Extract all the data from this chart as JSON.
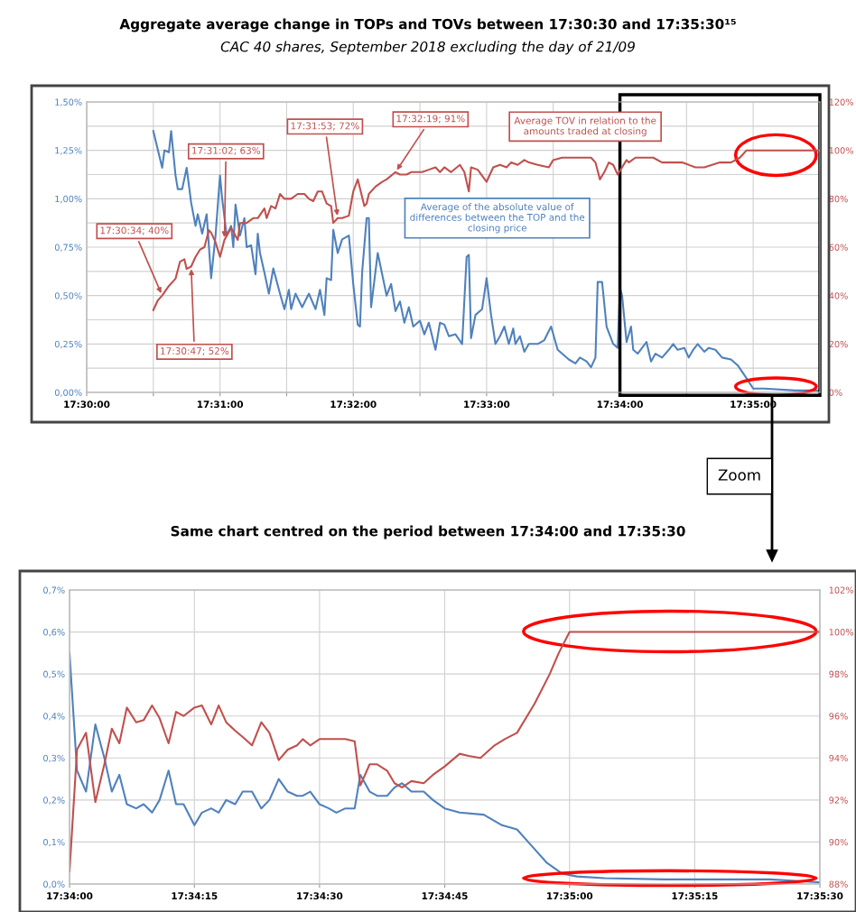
{
  "chart_data": [
    {
      "type": "line",
      "title": "Aggregate average change in TOPs and TOVs between 17:30:30 and 17:35:30¹⁵",
      "subtitle": "CAC 40 shares, September 2018 excluding the day of 21/09",
      "xlim": [
        17.5,
        17.59167
      ],
      "xticks": [
        {
          "value": 17.5,
          "label": "17:30:00"
        },
        {
          "value": 17.50833,
          "label": null
        },
        {
          "value": 17.51667,
          "label": "17:31:00"
        },
        {
          "value": 17.525,
          "label": null
        },
        {
          "value": 17.53333,
          "label": "17:32:00"
        },
        {
          "value": 17.54167,
          "label": null
        },
        {
          "value": 17.55,
          "label": "17:33:00"
        },
        {
          "value": 17.55833,
          "label": null
        },
        {
          "value": 17.56667,
          "label": "17:34:00"
        },
        {
          "value": 17.575,
          "label": null
        },
        {
          "value": 17.58333,
          "label": "17:35:00"
        }
      ],
      "ylim": [
        0,
        1.5
      ],
      "yticks": [
        {
          "value": 0,
          "label": "0,00%"
        },
        {
          "value": 0.125,
          "label": null
        },
        {
          "value": 0.25,
          "label": "0,25%"
        },
        {
          "value": 0.375,
          "label": null
        },
        {
          "value": 0.5,
          "label": "0,50%"
        },
        {
          "value": 0.625,
          "label": null
        },
        {
          "value": 0.75,
          "label": "0,75%"
        },
        {
          "value": 0.875,
          "label": null
        },
        {
          "value": 1.0,
          "label": "1,00%"
        },
        {
          "value": 1.125,
          "label": null
        },
        {
          "value": 1.25,
          "label": "1,25%"
        },
        {
          "value": 1.375,
          "label": null
        },
        {
          "value": 1.5,
          "label": "1,50%"
        }
      ],
      "y2lim": [
        0,
        120
      ],
      "y2ticks": [
        {
          "value": 0,
          "label": "0%"
        },
        {
          "value": 20,
          "label": "20%"
        },
        {
          "value": 40,
          "label": "40%"
        },
        {
          "value": 60,
          "label": "60%"
        },
        {
          "value": 80,
          "label": "80%"
        },
        {
          "value": 100,
          "label": "100%"
        },
        {
          "value": 120,
          "label": "120%"
        }
      ],
      "grid": true,
      "series": [
        {
          "name": "Average of the absolute value of\ndifferences between the TOP and the\nclosing price",
          "color": "#4f81bd",
          "x": [
            17.50833,
            17.50944,
            17.50972,
            17.51028,
            17.51056,
            17.51111,
            17.51139,
            17.51194,
            17.5125,
            17.51306,
            17.51361,
            17.51389,
            17.51444,
            17.515,
            17.51556,
            17.51611,
            17.51667,
            17.51694,
            17.5175,
            17.51806,
            17.51833,
            17.51861,
            17.51917,
            17.51972,
            17.52,
            17.52056,
            17.52111,
            17.52139,
            17.52167,
            17.52222,
            17.52278,
            17.52333,
            17.52417,
            17.52472,
            17.52528,
            17.52556,
            17.52611,
            17.52694,
            17.52778,
            17.52861,
            17.52917,
            17.52972,
            17.53,
            17.53056,
            17.53083,
            17.53139,
            17.53194,
            17.53278,
            17.53333,
            17.53389,
            17.53417,
            17.53444,
            17.535,
            17.53528,
            17.53556,
            17.53639,
            17.5375,
            17.53806,
            17.53861,
            17.53917,
            17.53972,
            17.54028,
            17.54083,
            17.54167,
            17.54222,
            17.54278,
            17.54361,
            17.54417,
            17.54472,
            17.54528,
            17.54611,
            17.54694,
            17.5475,
            17.54778,
            17.54806,
            17.54861,
            17.54944,
            17.55,
            17.55056,
            17.55111,
            17.55167,
            17.55222,
            17.55278,
            17.55333,
            17.55361,
            17.55417,
            17.55472,
            17.55528,
            17.55639,
            17.55722,
            17.55806,
            17.55889,
            17.55944,
            17.56028,
            17.56111,
            17.56167,
            17.5625,
            17.56306,
            17.56361,
            17.56389,
            17.56444,
            17.565,
            17.56583,
            17.56639,
            17.56667,
            17.56694,
            17.5675,
            17.56806,
            17.56833,
            17.56889,
            17.56944,
            17.57,
            17.57056,
            17.57111,
            17.57194,
            17.57278,
            17.57333,
            17.57389,
            17.57472,
            17.57528,
            17.57583,
            17.57639,
            17.57722,
            17.57778,
            17.57861,
            17.57944,
            17.58056,
            17.58139,
            17.58222,
            17.58333,
            17.58472,
            17.58861,
            17.59167
          ],
          "values": [
            1.35,
            1.16,
            1.25,
            1.24,
            1.35,
            1.12,
            1.05,
            1.05,
            1.16,
            0.98,
            0.86,
            0.92,
            0.82,
            0.92,
            0.59,
            0.81,
            1.12,
            1.0,
            0.81,
            0.86,
            0.75,
            0.97,
            0.81,
            0.9,
            0.75,
            0.76,
            0.61,
            0.82,
            0.72,
            0.62,
            0.51,
            0.64,
            0.51,
            0.43,
            0.53,
            0.43,
            0.51,
            0.44,
            0.51,
            0.43,
            0.53,
            0.4,
            0.59,
            0.58,
            0.84,
            0.72,
            0.79,
            0.81,
            0.56,
            0.35,
            0.34,
            0.62,
            0.9,
            0.9,
            0.44,
            0.72,
            0.5,
            0.56,
            0.42,
            0.47,
            0.36,
            0.44,
            0.34,
            0.37,
            0.3,
            0.36,
            0.22,
            0.36,
            0.35,
            0.29,
            0.3,
            0.25,
            0.7,
            0.71,
            0.28,
            0.4,
            0.43,
            0.59,
            0.4,
            0.25,
            0.29,
            0.34,
            0.25,
            0.33,
            0.25,
            0.29,
            0.21,
            0.25,
            0.25,
            0.27,
            0.34,
            0.22,
            0.2,
            0.17,
            0.15,
            0.18,
            0.16,
            0.13,
            0.18,
            0.57,
            0.57,
            0.34,
            0.25,
            0.23,
            0.54,
            0.5,
            0.26,
            0.34,
            0.22,
            0.2,
            0.23,
            0.26,
            0.16,
            0.2,
            0.18,
            0.22,
            0.25,
            0.22,
            0.23,
            0.18,
            0.22,
            0.25,
            0.21,
            0.23,
            0.22,
            0.18,
            0.17,
            0.14,
            0.09,
            0.02,
            0.02,
            0.01,
            0.01
          ]
        },
        {
          "name": "Average TOV in relation to the\namounts traded at closing",
          "color": "#c0504d",
          "axis": "y2",
          "x": [
            17.50833,
            17.50889,
            17.50944,
            17.51028,
            17.51111,
            17.51167,
            17.51222,
            17.5125,
            17.51306,
            17.51361,
            17.51417,
            17.51472,
            17.51528,
            17.51556,
            17.51611,
            17.51667,
            17.51722,
            17.51806,
            17.51889,
            17.51917,
            17.52,
            17.52083,
            17.52139,
            17.52222,
            17.5225,
            17.52306,
            17.52361,
            17.52417,
            17.52472,
            17.52556,
            17.52639,
            17.52722,
            17.52778,
            17.52833,
            17.52889,
            17.52944,
            17.53,
            17.53056,
            17.53083,
            17.53139,
            17.53194,
            17.53278,
            17.53333,
            17.53389,
            17.53472,
            17.535,
            17.53528,
            17.53611,
            17.53694,
            17.5375,
            17.53861,
            17.53917,
            17.54,
            17.54056,
            17.54139,
            17.54194,
            17.54278,
            17.54361,
            17.54417,
            17.54472,
            17.54556,
            17.54667,
            17.54722,
            17.54778,
            17.54806,
            17.54889,
            17.55,
            17.55083,
            17.55167,
            17.5525,
            17.55306,
            17.55389,
            17.55472,
            17.55528,
            17.55639,
            17.55778,
            17.55833,
            17.55944,
            17.56056,
            17.56167,
            17.56306,
            17.56361,
            17.56417,
            17.56472,
            17.56528,
            17.56583,
            17.56639,
            17.56694,
            17.5675,
            17.56778,
            17.56861,
            17.56972,
            17.57083,
            17.57194,
            17.57333,
            17.57444,
            17.57611,
            17.57722,
            17.57917,
            17.58056,
            17.58167,
            17.5825,
            17.58333,
            17.59167
          ],
          "values": [
            34,
            38,
            40,
            44,
            47,
            54,
            55,
            51,
            52,
            56,
            59,
            60,
            67,
            66,
            62,
            56,
            63,
            68,
            63,
            70,
            70,
            72,
            72,
            76,
            72,
            77,
            76,
            82,
            80,
            80,
            82,
            82,
            80,
            79,
            83,
            83,
            78,
            77,
            70,
            72,
            72,
            73,
            83,
            88,
            77,
            78,
            82,
            85,
            87,
            88,
            91,
            90,
            90,
            91,
            91,
            91,
            92,
            93,
            91,
            93,
            91,
            94,
            91,
            83,
            93,
            92,
            87,
            93,
            94,
            93,
            95,
            94,
            96,
            95,
            94,
            93,
            96,
            97,
            97,
            97,
            97,
            95,
            88,
            91,
            95,
            94,
            90,
            93,
            96,
            95,
            97,
            97,
            97,
            95,
            95,
            95,
            93,
            93,
            95,
            95,
            97,
            100,
            100,
            100
          ]
        }
      ],
      "annotations": [
        {
          "text": "17:30:34; 40%",
          "x": 17.50944,
          "y": 0.5
        },
        {
          "text": "17:30:47; 52%",
          "x": 17.51306,
          "y": 0.65
        },
        {
          "text": "17:31:02; 63%",
          "x": 17.51722,
          "y": 0.7875
        },
        {
          "text": "17:31:53; 72%",
          "x": 17.53139,
          "y": 0.9
        },
        {
          "text": "17:32:19; 91%",
          "x": 17.53861,
          "y": 1.1375
        },
        "Zoom"
      ]
    },
    {
      "type": "line",
      "title": "Same chart centred on the period between 17:34:00 and 17:35:30",
      "xlim": [
        17.56667,
        17.59167
      ],
      "xticks": [
        {
          "value": 17.56667,
          "label": "17:34:00"
        },
        {
          "value": 17.57083,
          "label": "17:34:15"
        },
        {
          "value": 17.575,
          "label": "17:34:30"
        },
        {
          "value": 17.57917,
          "label": "17:34:45"
        },
        {
          "value": 17.58333,
          "label": "17:35:00"
        },
        {
          "value": 17.5875,
          "label": "17:35:15"
        },
        {
          "value": 17.59167,
          "label": "17:35:30"
        }
      ],
      "ylim": [
        0,
        0.7
      ],
      "yticks": [
        {
          "value": 0,
          "label": "0,0%"
        },
        {
          "value": 0.1,
          "label": "0,1%"
        },
        {
          "value": 0.2,
          "label": "0,2%"
        },
        {
          "value": 0.3,
          "label": "0,3%"
        },
        {
          "value": 0.4,
          "label": "0,4%"
        },
        {
          "value": 0.5,
          "label": "0,5%"
        },
        {
          "value": 0.6,
          "label": "0,6%"
        },
        {
          "value": 0.7,
          "label": "0,7%"
        }
      ],
      "y2lim": [
        88,
        102
      ],
      "y2ticks": [
        {
          "value": 88,
          "label": "88%"
        },
        {
          "value": 90,
          "label": "90%"
        },
        {
          "value": 92,
          "label": "92%"
        },
        {
          "value": 94,
          "label": "94%"
        },
        {
          "value": 96,
          "label": "96%"
        },
        {
          "value": 98,
          "label": "98%"
        },
        {
          "value": 100,
          "label": "100%"
        },
        {
          "value": 102,
          "label": "102%"
        }
      ],
      "grid": true,
      "series": [
        {
          "color": "#4f81bd",
          "x": [
            17.56667,
            17.56692,
            17.56722,
            17.56753,
            17.56783,
            17.56808,
            17.56833,
            17.56858,
            17.56889,
            17.56914,
            17.56942,
            17.56967,
            17.56997,
            17.57022,
            17.57047,
            17.57083,
            17.57108,
            17.57139,
            17.57164,
            17.57189,
            17.57219,
            17.57244,
            17.57275,
            17.57306,
            17.57333,
            17.57364,
            17.57394,
            17.57425,
            17.57444,
            17.57469,
            17.575,
            17.57531,
            17.57556,
            17.57586,
            17.57617,
            17.57636,
            17.57667,
            17.57692,
            17.57725,
            17.5775,
            17.57775,
            17.57806,
            17.57847,
            17.57878,
            17.57917,
            17.57967,
            17.58047,
            17.58108,
            17.58158,
            17.58208,
            17.58258,
            17.58308,
            17.58358,
            17.5845,
            17.5865,
            17.5885,
            17.59,
            17.591,
            17.59167
          ],
          "values": [
            0.55,
            0.27,
            0.22,
            0.38,
            0.3,
            0.22,
            0.26,
            0.19,
            0.18,
            0.19,
            0.17,
            0.2,
            0.27,
            0.19,
            0.19,
            0.14,
            0.17,
            0.18,
            0.17,
            0.2,
            0.19,
            0.22,
            0.22,
            0.18,
            0.2,
            0.25,
            0.22,
            0.21,
            0.21,
            0.22,
            0.19,
            0.18,
            0.17,
            0.18,
            0.18,
            0.26,
            0.22,
            0.21,
            0.21,
            0.23,
            0.24,
            0.22,
            0.22,
            0.2,
            0.18,
            0.17,
            0.165,
            0.14,
            0.13,
            0.09,
            0.05,
            0.025,
            0.018,
            0.014,
            0.011,
            0.011,
            0.011,
            0.007,
            0.004
          ]
        },
        {
          "color": "#c0504d",
          "axis": "y2",
          "x": [
            17.56667,
            17.56692,
            17.56722,
            17.56753,
            17.56783,
            17.56808,
            17.56833,
            17.56858,
            17.56889,
            17.56914,
            17.56942,
            17.56967,
            17.56997,
            17.57022,
            17.57047,
            17.57083,
            17.57108,
            17.57139,
            17.57164,
            17.57189,
            17.57219,
            17.57244,
            17.57275,
            17.57306,
            17.57333,
            17.57364,
            17.57394,
            17.57425,
            17.57444,
            17.57469,
            17.575,
            17.57531,
            17.57586,
            17.57617,
            17.57636,
            17.57667,
            17.57692,
            17.57725,
            17.5775,
            17.57775,
            17.57806,
            17.57847,
            17.57878,
            17.57917,
            17.57967,
            17.57997,
            17.58036,
            17.58083,
            17.58117,
            17.58158,
            17.58217,
            17.58267,
            17.58297,
            17.58333,
            17.5845,
            17.59167
          ],
          "values": [
            88.6,
            94.4,
            95.2,
            91.9,
            93.7,
            95.4,
            94.7,
            96.4,
            95.7,
            95.8,
            96.5,
            95.9,
            94.7,
            96.2,
            96.0,
            96.4,
            96.5,
            95.6,
            96.5,
            95.7,
            95.3,
            95.0,
            94.6,
            95.7,
            95.2,
            93.9,
            94.4,
            94.6,
            94.9,
            94.6,
            94.9,
            94.9,
            94.9,
            94.8,
            92.7,
            93.7,
            93.7,
            93.4,
            92.8,
            92.6,
            92.9,
            92.8,
            93.2,
            93.6,
            94.2,
            94.1,
            94.0,
            94.6,
            94.9,
            95.2,
            96.6,
            98.0,
            99.0,
            100.0,
            100.0,
            100.0
          ]
        }
      ]
    }
  ]
}
